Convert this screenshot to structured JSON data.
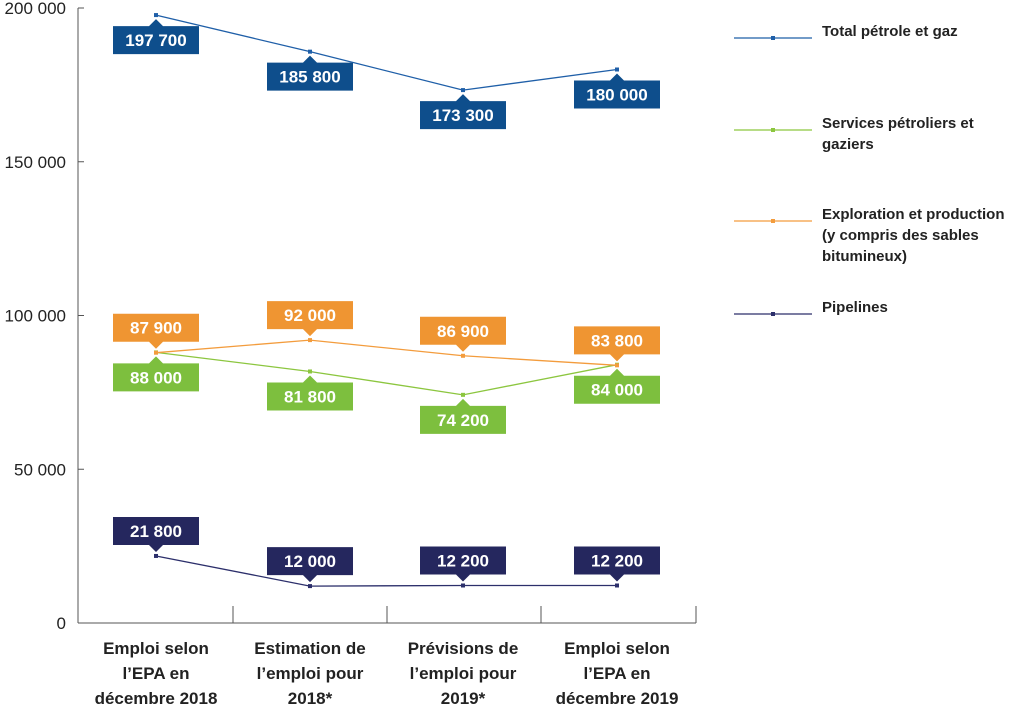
{
  "chart_data": {
    "type": "line",
    "categories": [
      [
        "Emploi selon",
        "l’EPA en",
        "décembre 2018"
      ],
      [
        "Estimation de",
        "l’emploi pour",
        "2018*"
      ],
      [
        "Prévisions de",
        "l’emploi pour",
        "2019*"
      ],
      [
        "Emploi selon",
        "l’EPA en",
        "décembre 2019"
      ]
    ],
    "ylim": [
      0,
      200000
    ],
    "yticks": [
      {
        "value": 0,
        "label": "0"
      },
      {
        "value": 50000,
        "label": "50 000"
      },
      {
        "value": 100000,
        "label": "100 000"
      },
      {
        "value": 150000,
        "label": "150 000"
      },
      {
        "value": 200000,
        "label": "200 000"
      }
    ],
    "grid": false,
    "legend_position": "right",
    "series": [
      {
        "name": "Total pétrole et gaz",
        "color": "#1f5fa8",
        "label_color": "#0e4e8c",
        "label_position": "below",
        "values": [
          197700,
          185800,
          173300,
          180000
        ],
        "labels": [
          "197 700",
          "185 800",
          "173 300",
          "180 000"
        ]
      },
      {
        "name": "Services pétroliers et gaziers",
        "color": "#8cc63f",
        "label_color": "#7dbf3e",
        "label_position": "below",
        "values": [
          88000,
          81800,
          74200,
          84000
        ],
        "labels": [
          "88 000",
          "81 800",
          "74 200",
          "84 000"
        ]
      },
      {
        "name": "Exploration et production (y compris des sables bitumineux)",
        "color": "#f39c3d",
        "label_color": "#ef9532",
        "label_position": "above",
        "values": [
          87900,
          92000,
          86900,
          83800
        ],
        "labels": [
          "87 900",
          "92 000",
          "86 900",
          "83 800"
        ]
      },
      {
        "name": "Pipelines",
        "color": "#2c2f6b",
        "label_color": "#25275e",
        "label_position": "above",
        "values": [
          21800,
          12000,
          12200,
          12200
        ],
        "labels": [
          "21 800",
          "12 000",
          "12 200",
          "12 200"
        ]
      }
    ],
    "legend": [
      [
        "Total pétrole et gaz"
      ],
      [
        "Services pétroliers et",
        "gaziers"
      ],
      [
        "Exploration et production",
        "(y compris des sables",
        "bitumineux)"
      ],
      [
        "Pipelines"
      ]
    ]
  }
}
